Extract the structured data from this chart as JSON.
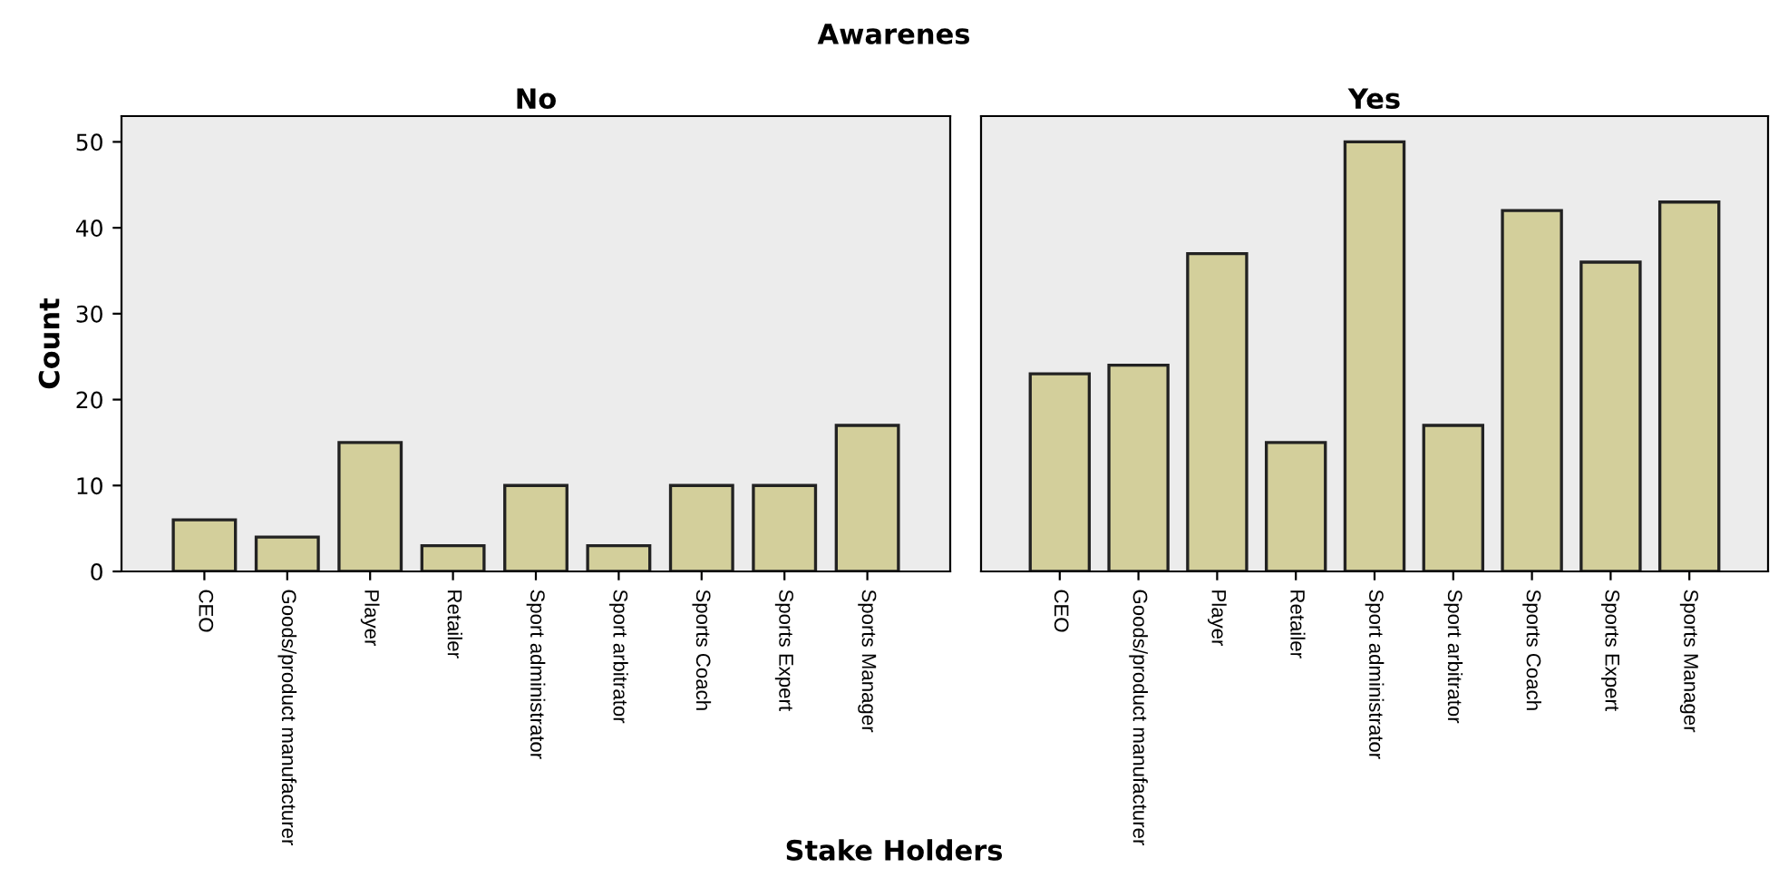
{
  "chart_data": [
    {
      "type": "bar",
      "title": "Awarenes",
      "subtitle": "No",
      "xlabel": "Stake Holders",
      "ylabel": "Count",
      "categories": [
        "CEO",
        "Goods/product manufacturer",
        "Player",
        "Retailer",
        "Sport administrator",
        "Sport arbitrator",
        "Sports Coach",
        "Sports Expert",
        "Sports Manager"
      ],
      "series": [
        {
          "color": "#d3cf9b",
          "values": [
            6,
            4,
            15,
            3,
            10,
            3,
            10,
            10,
            17
          ]
        }
      ],
      "ylim": [
        0,
        53
      ],
      "yticks": [
        0,
        10,
        20,
        30,
        40,
        50
      ],
      "grid": false,
      "legend": false
    },
    {
      "type": "bar",
      "subtitle": "Yes",
      "categories": [
        "CEO",
        "Goods/product manufacturer",
        "Player",
        "Retailer",
        "Sport administrator",
        "Sport arbitrator",
        "Sports Coach",
        "Sports Expert",
        "Sports Manager"
      ],
      "series": [
        {
          "color": "#d3cf9b",
          "values": [
            23,
            24,
            37,
            15,
            50,
            17,
            42,
            36,
            43
          ]
        }
      ],
      "ylim": [
        0,
        53
      ],
      "yticks": [
        0,
        10,
        20,
        30,
        40,
        50
      ],
      "tick_labels": "x",
      "grid": false,
      "legend": false
    }
  ]
}
